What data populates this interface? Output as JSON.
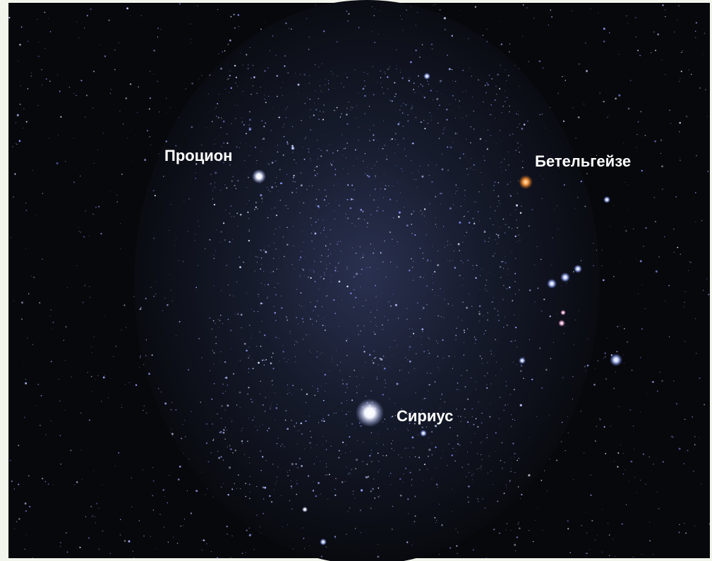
{
  "labels": {
    "procyon": "Процион",
    "betelgeuse": "Бетельгейзе",
    "sirius": "Сириус"
  }
}
